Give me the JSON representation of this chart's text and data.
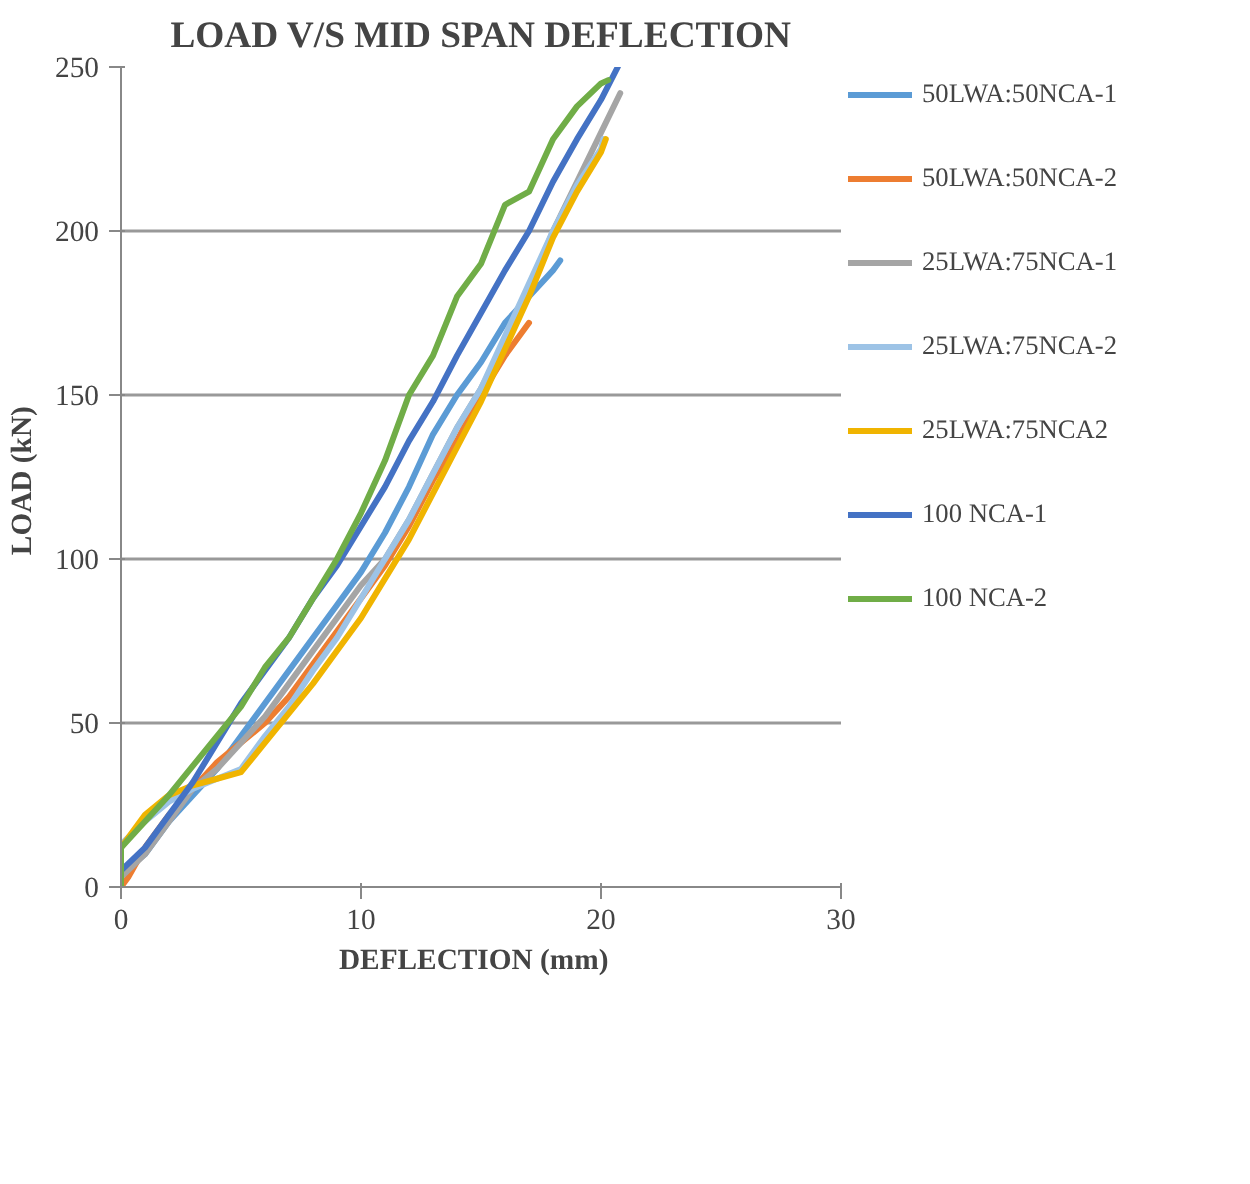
{
  "chart_data": {
    "type": "line",
    "title": "LOAD V/S MID SPAN DEFLECTION",
    "xlabel": "DEFLECTION   (mm)",
    "ylabel": "LOAD  (kN)",
    "xlim": [
      0,
      30
    ],
    "xticks": [
      0,
      10,
      20,
      30
    ],
    "ylim": [
      0,
      250
    ],
    "yticks": [
      0,
      50,
      100,
      150,
      200,
      250
    ],
    "grid": "y",
    "legend": "right",
    "line_style": "solid",
    "series": [
      {
        "name": "50LWA:50NCA-1",
        "color": "#5b9bd5",
        "x": [
          0,
          0,
          1,
          2,
          3,
          4,
          5,
          6,
          7,
          8,
          9,
          10,
          11,
          12,
          13,
          14,
          15,
          16,
          17,
          18,
          18.3
        ],
        "values": [
          0,
          4,
          10,
          20,
          28,
          36,
          46,
          56,
          66,
          76,
          86,
          96,
          108,
          122,
          138,
          150,
          160,
          172,
          180,
          188,
          191
        ]
      },
      {
        "name": "50LWA:50NCA-2",
        "color": "#ed7d31",
        "x": [
          0,
          0.3,
          1,
          2,
          3,
          4,
          5,
          6,
          7,
          8,
          9,
          10,
          11,
          12,
          13,
          14,
          15,
          16,
          17
        ],
        "values": [
          0,
          3,
          12,
          22,
          30,
          38,
          44,
          50,
          58,
          68,
          78,
          88,
          98,
          110,
          124,
          136,
          150,
          162,
          172
        ]
      },
      {
        "name": "25LWA:75NCA-1",
        "color": "#a5a5a5",
        "x": [
          0,
          0,
          1,
          2,
          3,
          4,
          5,
          6,
          7,
          8,
          9,
          10,
          11,
          12,
          13,
          14,
          15,
          16,
          17,
          18,
          19,
          20,
          20.8
        ],
        "values": [
          0,
          3,
          10,
          20,
          30,
          36,
          44,
          52,
          62,
          72,
          82,
          92,
          100,
          112,
          126,
          140,
          152,
          166,
          182,
          200,
          215,
          230,
          242
        ]
      },
      {
        "name": "25LWA:75NCA-2",
        "color": "#9dc3e6",
        "x": [
          0,
          0,
          1,
          2,
          3,
          4,
          5,
          6,
          7,
          8,
          9,
          10,
          11,
          12,
          13,
          14,
          15,
          16,
          17,
          18,
          19,
          20,
          20.1
        ],
        "values": [
          0,
          13,
          20,
          26,
          30,
          33,
          36,
          46,
          55,
          66,
          76,
          88,
          100,
          112,
          126,
          140,
          152,
          168,
          184,
          200,
          214,
          225,
          228
        ]
      },
      {
        "name": "25LWA:75NCA2",
        "color": "#f0b400",
        "x": [
          0,
          0,
          1,
          2,
          3,
          4,
          5,
          6,
          7,
          8,
          9,
          10,
          11,
          12,
          13,
          14,
          15,
          16,
          17,
          18,
          19,
          20,
          20.2
        ],
        "values": [
          0,
          12,
          22,
          28,
          31,
          33,
          35,
          44,
          53,
          62,
          72,
          82,
          94,
          106,
          120,
          134,
          148,
          164,
          180,
          198,
          212,
          224,
          228
        ]
      },
      {
        "name": "100 NCA-1",
        "color": "#4472c4",
        "x": [
          0,
          0,
          1,
          2,
          3,
          4,
          5,
          6,
          7,
          8,
          9,
          10,
          11,
          12,
          13,
          14,
          15,
          16,
          17,
          18,
          19,
          20,
          20.7
        ],
        "values": [
          0,
          5,
          12,
          22,
          32,
          44,
          56,
          66,
          76,
          88,
          98,
          110,
          122,
          136,
          148,
          162,
          175,
          188,
          200,
          215,
          228,
          240,
          250
        ]
      },
      {
        "name": "100 NCA-2",
        "color": "#70ad47",
        "x": [
          0,
          0,
          1,
          2,
          3,
          4,
          5,
          6,
          7,
          8,
          9,
          10,
          11,
          12,
          13,
          14,
          15,
          16,
          17,
          18,
          19,
          20,
          20.3
        ],
        "values": [
          0,
          12,
          20,
          28,
          37,
          46,
          55,
          67,
          76,
          88,
          100,
          114,
          130,
          150,
          162,
          180,
          190,
          208,
          212,
          228,
          238,
          245,
          246
        ]
      }
    ]
  }
}
